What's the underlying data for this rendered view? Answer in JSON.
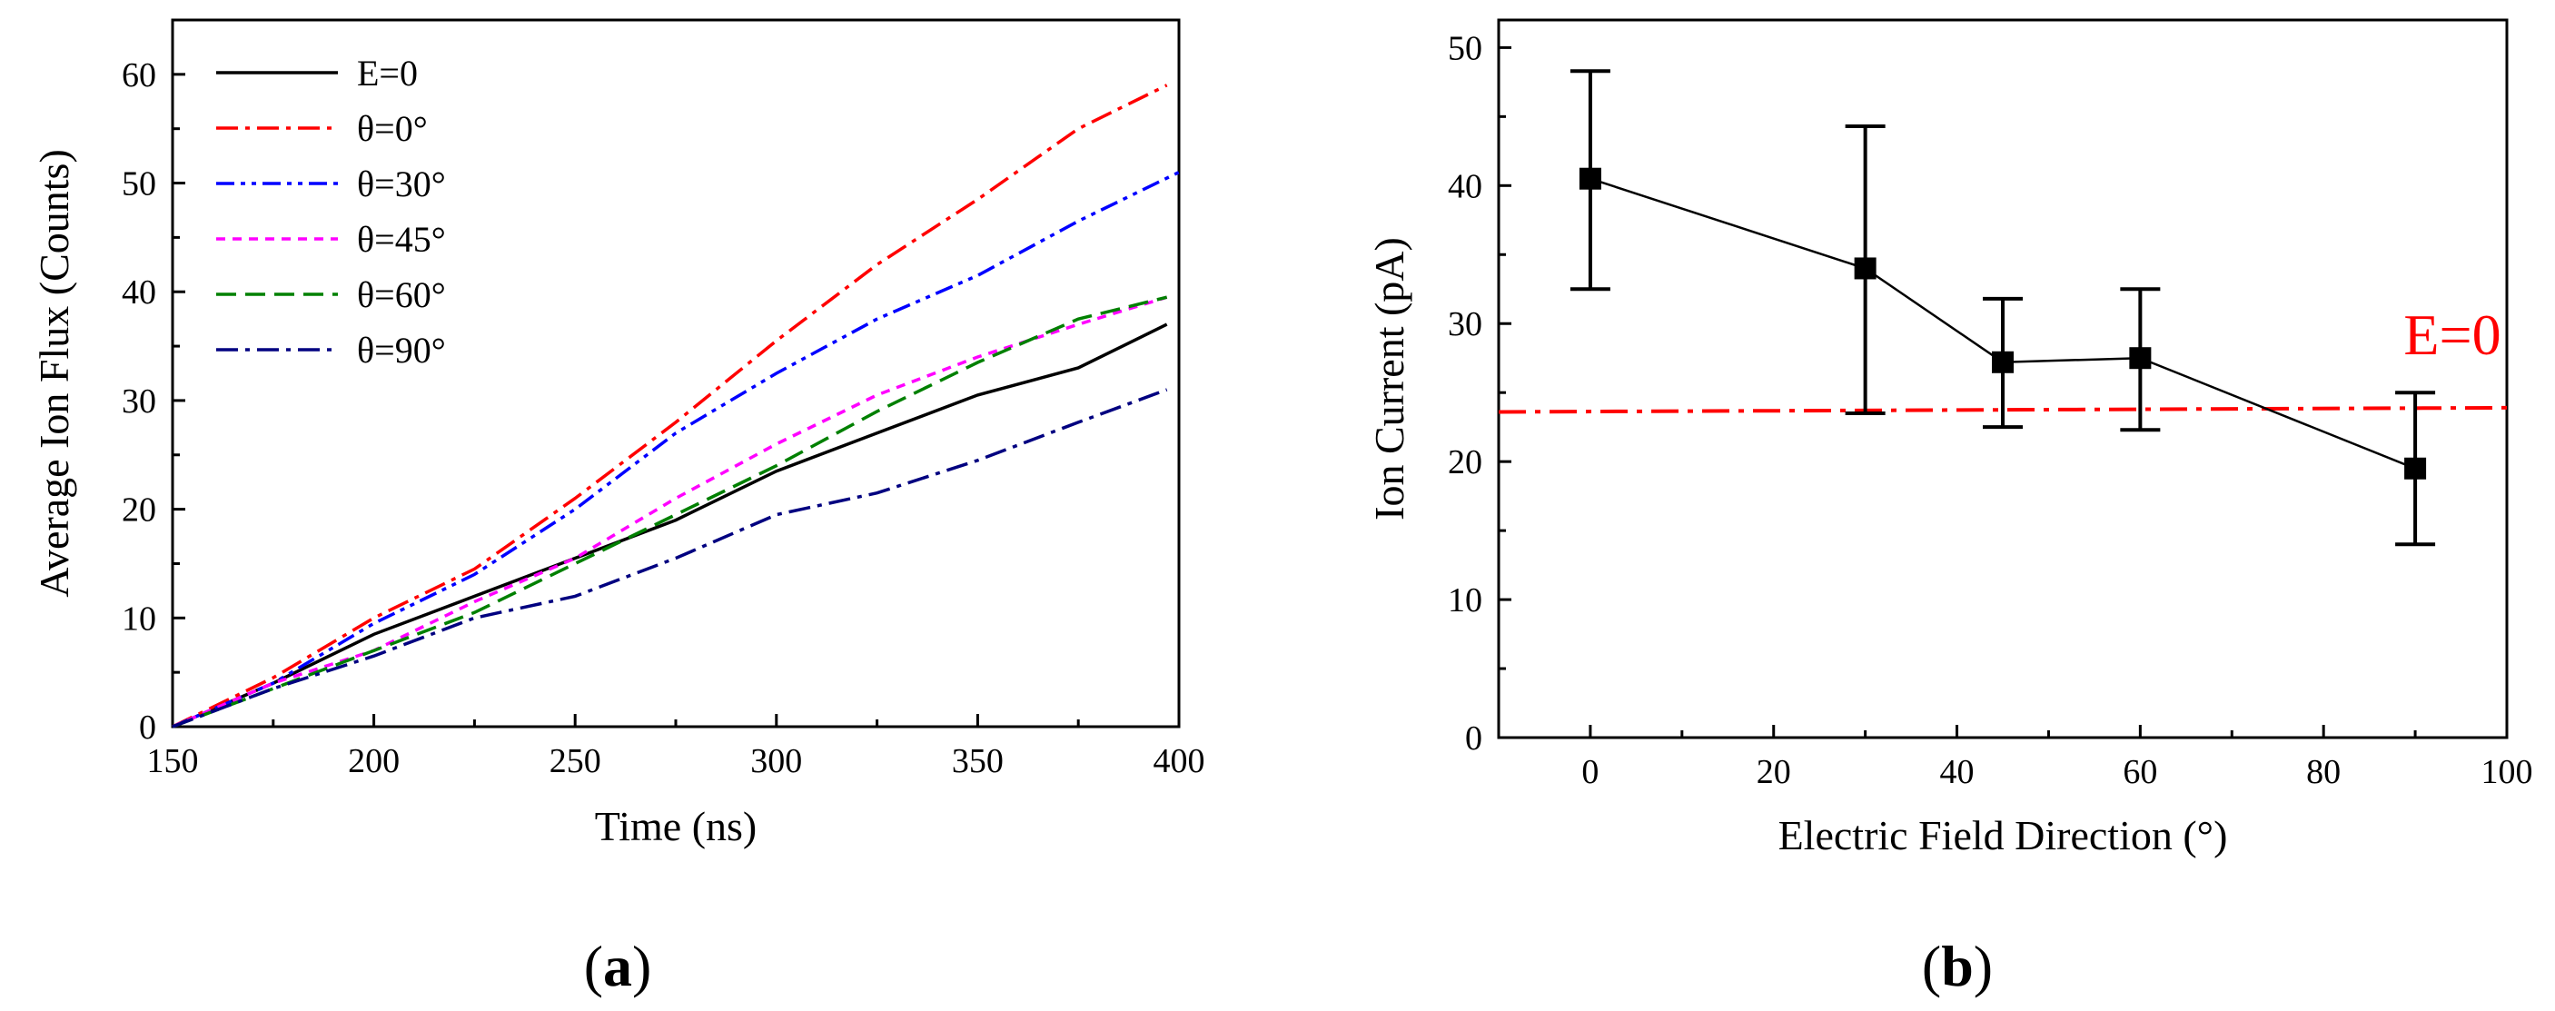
{
  "chart_data": [
    {
      "type": "line",
      "panel_label": "a",
      "xlabel": "Time (ns)",
      "ylabel": "Average Ion Flux (Counts)",
      "xlim": [
        150,
        400
      ],
      "ylim": [
        0,
        65
      ],
      "xticks": [
        150,
        200,
        250,
        300,
        350,
        400
      ],
      "yticks": [
        0,
        10,
        20,
        30,
        40,
        50,
        60
      ],
      "legend_position": "top-left",
      "series": [
        {
          "name": "E=0",
          "color": "#000000",
          "dash": "solid",
          "x": [
            150,
            175,
            200,
            225,
            250,
            275,
            300,
            325,
            350,
            375,
            397
          ],
          "y": [
            0,
            4,
            8.5,
            12,
            15.5,
            19,
            23.5,
            27,
            30.5,
            33,
            37
          ]
        },
        {
          "name": "θ=0°",
          "color": "#ff0000",
          "dash": "dashdot",
          "x": [
            150,
            175,
            200,
            225,
            250,
            275,
            300,
            325,
            350,
            375,
            397
          ],
          "y": [
            0,
            4.5,
            10,
            14.5,
            21,
            28,
            35.5,
            42.5,
            48.5,
            55,
            59
          ]
        },
        {
          "name": "θ=30°",
          "color": "#0000ff",
          "dash": "dashdotdot",
          "x": [
            150,
            175,
            200,
            225,
            250,
            275,
            300,
            325,
            350,
            375,
            400
          ],
          "y": [
            0,
            4,
            9.5,
            14,
            20,
            27,
            32.5,
            37.5,
            41.5,
            46.5,
            51
          ]
        },
        {
          "name": "θ=45°",
          "color": "#ff00ff",
          "dash": "shortdash",
          "x": [
            150,
            175,
            200,
            225,
            250,
            275,
            300,
            325,
            350,
            375,
            397
          ],
          "y": [
            0,
            4,
            7,
            11.5,
            15.5,
            21,
            26,
            30.5,
            34,
            37,
            39.5
          ]
        },
        {
          "name": "θ=60°",
          "color": "#008000",
          "dash": "dash",
          "x": [
            150,
            175,
            200,
            225,
            250,
            275,
            300,
            325,
            350,
            375,
            397
          ],
          "y": [
            0,
            3.5,
            7,
            10.5,
            15,
            19.5,
            24,
            29,
            33.5,
            37.5,
            39.5
          ]
        },
        {
          "name": "θ=90°",
          "color": "#000080",
          "dash": "dashdot",
          "x": [
            150,
            175,
            200,
            225,
            250,
            275,
            300,
            325,
            350,
            375,
            397
          ],
          "y": [
            0,
            3.5,
            6.5,
            10,
            12,
            15.5,
            19.5,
            21.5,
            24.5,
            28,
            31
          ]
        }
      ]
    },
    {
      "type": "scatter",
      "panel_label": "b",
      "xlabel": "Electric Field Direction (°)",
      "ylabel": "Ion Current (pA)",
      "xlim": [
        -10,
        100
      ],
      "ylim": [
        0,
        52
      ],
      "xticks": [
        0,
        20,
        40,
        60,
        80,
        100
      ],
      "yticks": [
        0,
        10,
        20,
        30,
        40,
        50
      ],
      "series": [
        {
          "name": "Ion Current",
          "color": "#000000",
          "x": [
            0,
            30,
            45,
            60,
            90
          ],
          "y": [
            40.5,
            34,
            27.2,
            27.5,
            19.5
          ],
          "err_low": [
            32.5,
            23.5,
            22.5,
            22.3,
            14
          ],
          "err_high": [
            48.3,
            44.3,
            31.8,
            32.5,
            25
          ]
        }
      ],
      "reference_line": {
        "label": "E=0",
        "y_start": 23.6,
        "y_end": 23.9,
        "color": "#ff0000"
      }
    }
  ]
}
